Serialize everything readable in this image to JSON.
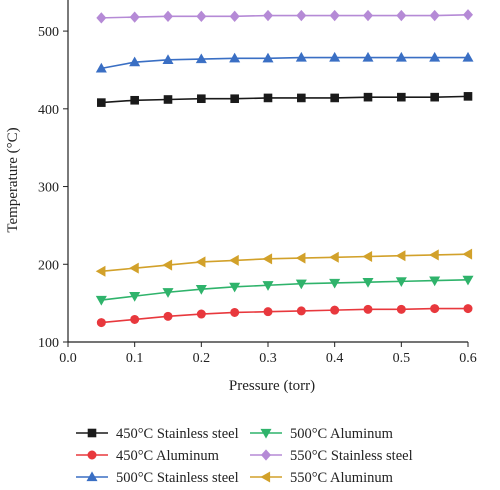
{
  "chart_data": {
    "type": "line",
    "xlabel": "Pressure (torr)",
    "ylabel": "Temperature (°C)",
    "xlim": [
      0.0,
      0.6
    ],
    "ylim": [
      100,
      540
    ],
    "xticks": [
      "0.0",
      "0.1",
      "0.2",
      "0.3",
      "0.4",
      "0.5",
      "0.6"
    ],
    "yticks": [
      "100",
      "200",
      "300",
      "400",
      "500"
    ],
    "grid": false,
    "legend_position": "bottom",
    "x": [
      0.05,
      0.1,
      0.15,
      0.2,
      0.25,
      0.3,
      0.35,
      0.4,
      0.45,
      0.5,
      0.55,
      0.6
    ],
    "series": [
      {
        "name": "450°C Stainless steel",
        "marker": "square",
        "color": "#1a1a1a",
        "values": [
          408,
          411,
          412,
          413,
          413,
          414,
          414,
          414,
          415,
          415,
          415,
          416
        ]
      },
      {
        "name": "450°C Aluminum",
        "marker": "circle",
        "color": "#e8383d",
        "values": [
          125,
          129,
          133,
          136,
          138,
          139,
          140,
          141,
          142,
          142,
          143,
          143
        ]
      },
      {
        "name": "500°C Stainless steel",
        "marker": "triangle-up",
        "color": "#3a6fc4",
        "values": [
          452,
          460,
          463,
          464,
          465,
          465,
          466,
          466,
          466,
          466,
          466,
          466
        ]
      },
      {
        "name": "500°C Aluminum",
        "marker": "triangle-down",
        "color": "#2fb36b",
        "values": [
          154,
          159,
          164,
          168,
          171,
          173,
          175,
          176,
          177,
          178,
          179,
          180
        ]
      },
      {
        "name": "550°C Stainless steel",
        "marker": "diamond",
        "color": "#b58ad6",
        "values": [
          517,
          518,
          519,
          519,
          519,
          520,
          520,
          520,
          520,
          520,
          520,
          521
        ]
      },
      {
        "name": "550°C Aluminum",
        "marker": "triangle-left",
        "color": "#d2a12a",
        "values": [
          191,
          195,
          199,
          203,
          205,
          207,
          208,
          209,
          210,
          211,
          212,
          213
        ]
      }
    ]
  }
}
